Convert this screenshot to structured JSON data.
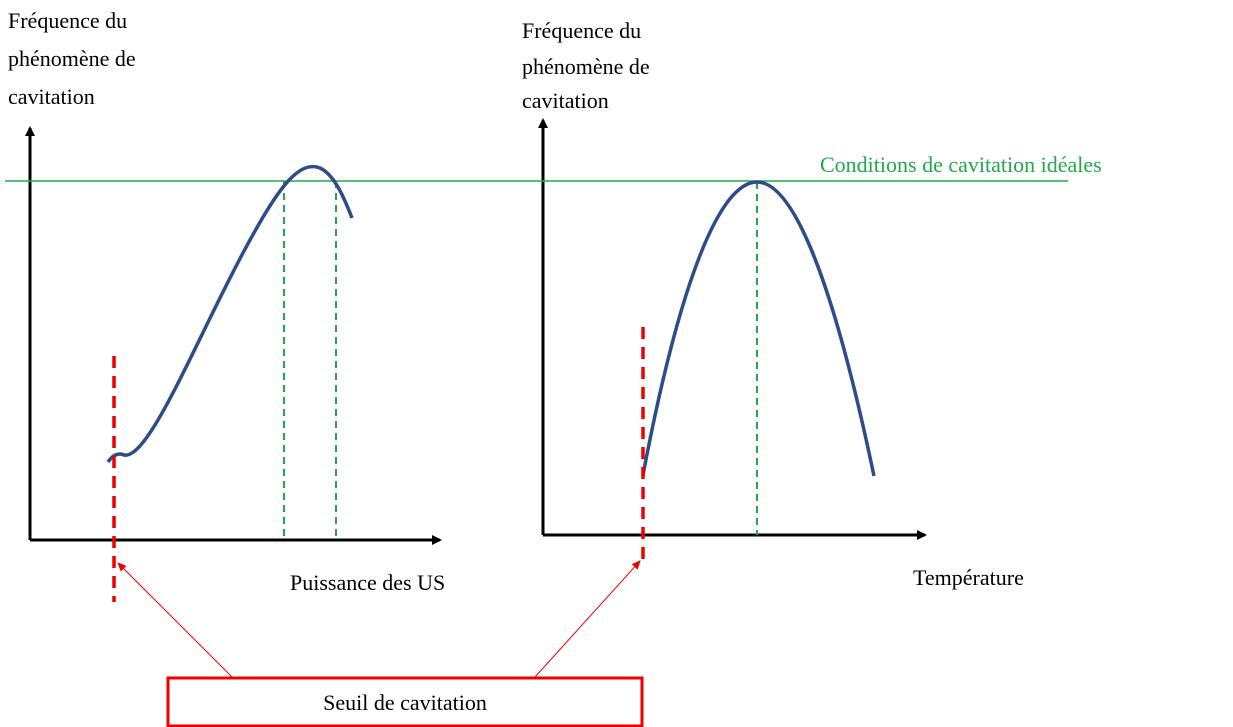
{
  "left_panel": {
    "y_label": [
      "Fréquence du",
      "phénomène de",
      "cavitation"
    ],
    "x_label": "Puissance des US"
  },
  "right_panel": {
    "y_label": [
      "Fréquence du",
      "phénomène de",
      "cavitation"
    ],
    "x_label": "Température"
  },
  "ideal_line_label": "Conditions de cavitation idéales",
  "threshold_box": "Seuil de cavitation"
}
